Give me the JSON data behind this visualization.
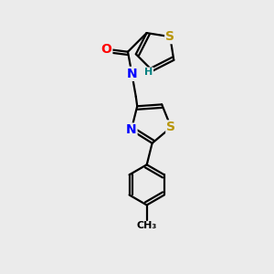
{
  "bg_color": "#ebebeb",
  "bond_color": "#000000",
  "atom_colors": {
    "S": "#b8960c",
    "O": "#ff0000",
    "N": "#0000ff",
    "H": "#008080",
    "C": "#000000"
  },
  "font_size_atom": 10,
  "font_size_small": 8,
  "lw": 1.6
}
